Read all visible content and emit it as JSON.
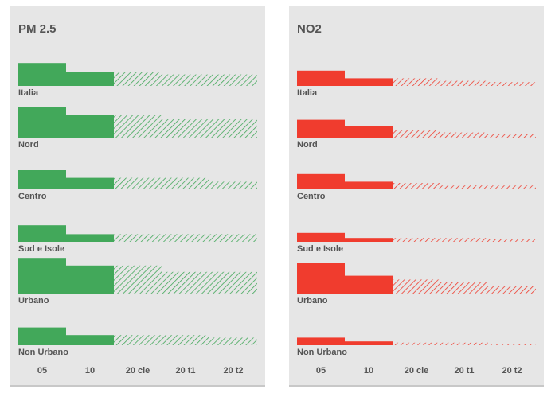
{
  "chart_data": [
    {
      "type": "bar",
      "title": "PM 2.5",
      "color": "#42a85a",
      "categories": [
        "05",
        "10",
        "20 cle",
        "20 t1",
        "20 t2"
      ],
      "groups": [
        {
          "name": "Italia",
          "values": [
            18,
            11,
            11,
            9,
            9
          ]
        },
        {
          "name": "Nord",
          "values": [
            24,
            18,
            18,
            15,
            15
          ]
        },
        {
          "name": "Centro",
          "values": [
            15,
            9,
            9,
            9,
            6
          ]
        },
        {
          "name": "Sud e Isole",
          "values": [
            13,
            6,
            6,
            6,
            6
          ]
        },
        {
          "name": "Urbano",
          "values": [
            28,
            22,
            22,
            17,
            17
          ]
        },
        {
          "name": "Non Urbano",
          "values": [
            14,
            8,
            8,
            8,
            6
          ]
        }
      ]
    },
    {
      "type": "bar",
      "title": "NO2",
      "color": "#f03c2e",
      "categories": [
        "05",
        "10",
        "20 cle",
        "20 t1",
        "20 t2"
      ],
      "groups": [
        {
          "name": "Italia",
          "values": [
            12,
            6,
            6,
            4,
            3
          ]
        },
        {
          "name": "Nord",
          "values": [
            14,
            9,
            6,
            4,
            3
          ]
        },
        {
          "name": "Centro",
          "values": [
            12,
            6,
            5,
            3,
            3
          ]
        },
        {
          "name": "Sud e Isole",
          "values": [
            7,
            3,
            3,
            3,
            2
          ]
        },
        {
          "name": "Urbano",
          "values": [
            24,
            14,
            11,
            9,
            6
          ]
        },
        {
          "name": "Non Urbano",
          "values": [
            6,
            3,
            2,
            2,
            1
          ]
        }
      ]
    }
  ]
}
